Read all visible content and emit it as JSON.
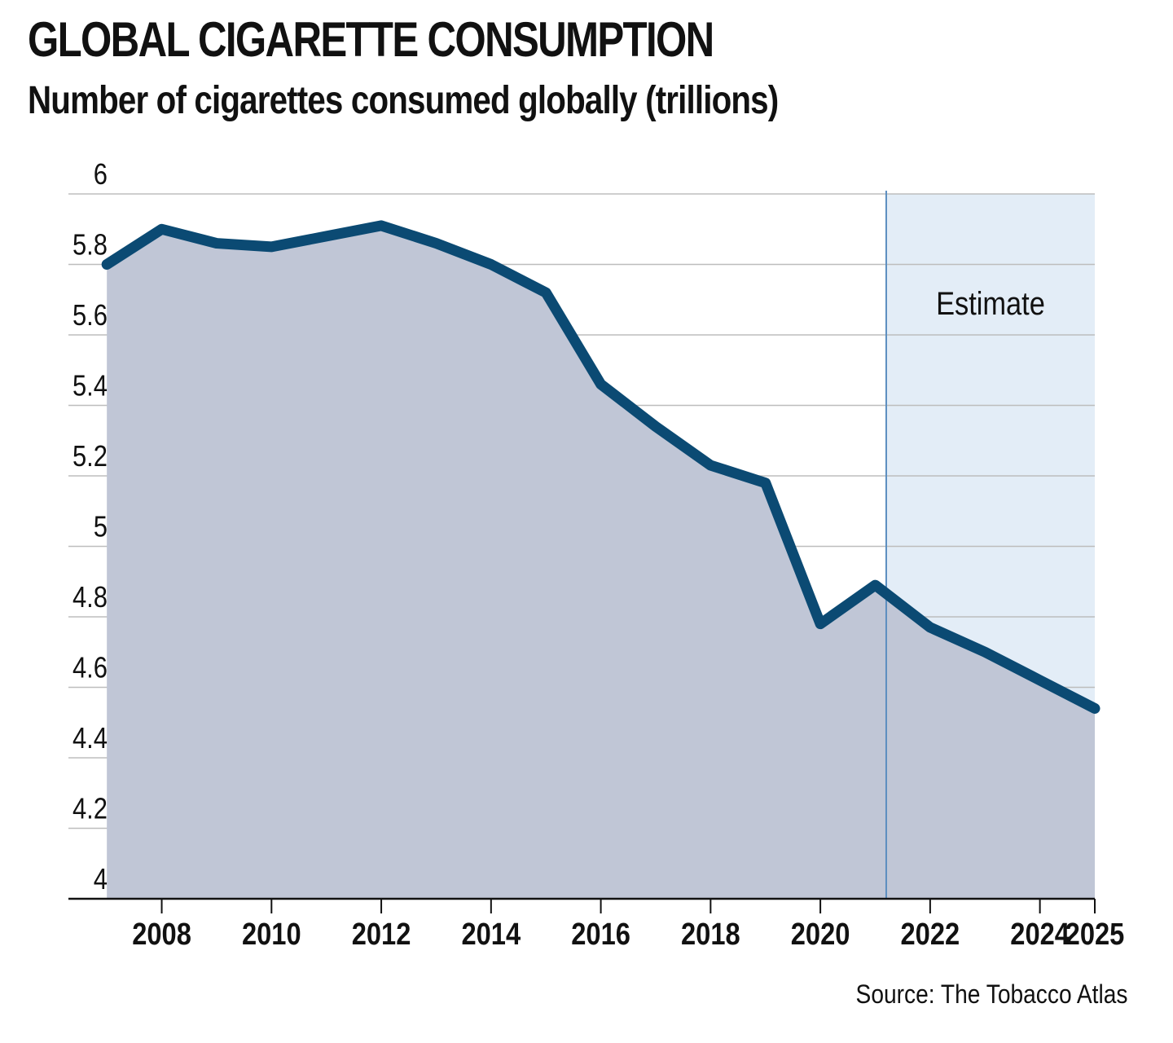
{
  "title": "GLOBAL CIGARETTE CONSUMPTION",
  "subtitle": "Number of cigarettes consumed globally (trillions)",
  "source": "Source: The Tobacco Atlas",
  "colors": {
    "line": "#0b4a73",
    "area": "#c0c6d6",
    "estimate_band": "#e3edf7",
    "estimate_divider": "#5b8ec0",
    "grid": "#bdbdbd",
    "axis": "#111111"
  },
  "chart_data": {
    "type": "area",
    "title": "GLOBAL CIGARETTE CONSUMPTION",
    "subtitle": "Number of cigarettes consumed globally (trillions)",
    "xlabel": "",
    "ylabel": "",
    "ylim": [
      4,
      6
    ],
    "xlim": [
      2006.3,
      2025.0
    ],
    "yticks": [
      4,
      4.2,
      4.4,
      4.6,
      4.8,
      5,
      5.2,
      5.4,
      5.6,
      5.8,
      6
    ],
    "ytick_labels": [
      "4",
      "4.2",
      "4.4",
      "4.6",
      "4.8",
      "5",
      "5.2",
      "5.4",
      "5.6",
      "5.8",
      "6"
    ],
    "xticks": [
      2008,
      2010,
      2012,
      2014,
      2016,
      2018,
      2020,
      2022,
      2024,
      2025
    ],
    "xtick_labels": [
      "2008",
      "2010",
      "2012",
      "2014",
      "2016",
      "2018",
      "2020",
      "2022",
      "2024",
      "2025"
    ],
    "grid": "horizontal",
    "x": [
      2007,
      2008,
      2009,
      2010,
      2011,
      2012,
      2013,
      2014,
      2015,
      2016,
      2017,
      2018,
      2019,
      2020,
      2021,
      2022,
      2023,
      2024,
      2025
    ],
    "values": [
      5.8,
      5.9,
      5.86,
      5.85,
      5.88,
      5.91,
      5.86,
      5.8,
      5.72,
      5.46,
      5.34,
      5.23,
      5.18,
      4.78,
      4.89,
      4.77,
      4.7,
      4.62,
      4.54
    ],
    "estimate": {
      "label": "Estimate",
      "from": 2021.2,
      "to": 2025.0
    }
  }
}
